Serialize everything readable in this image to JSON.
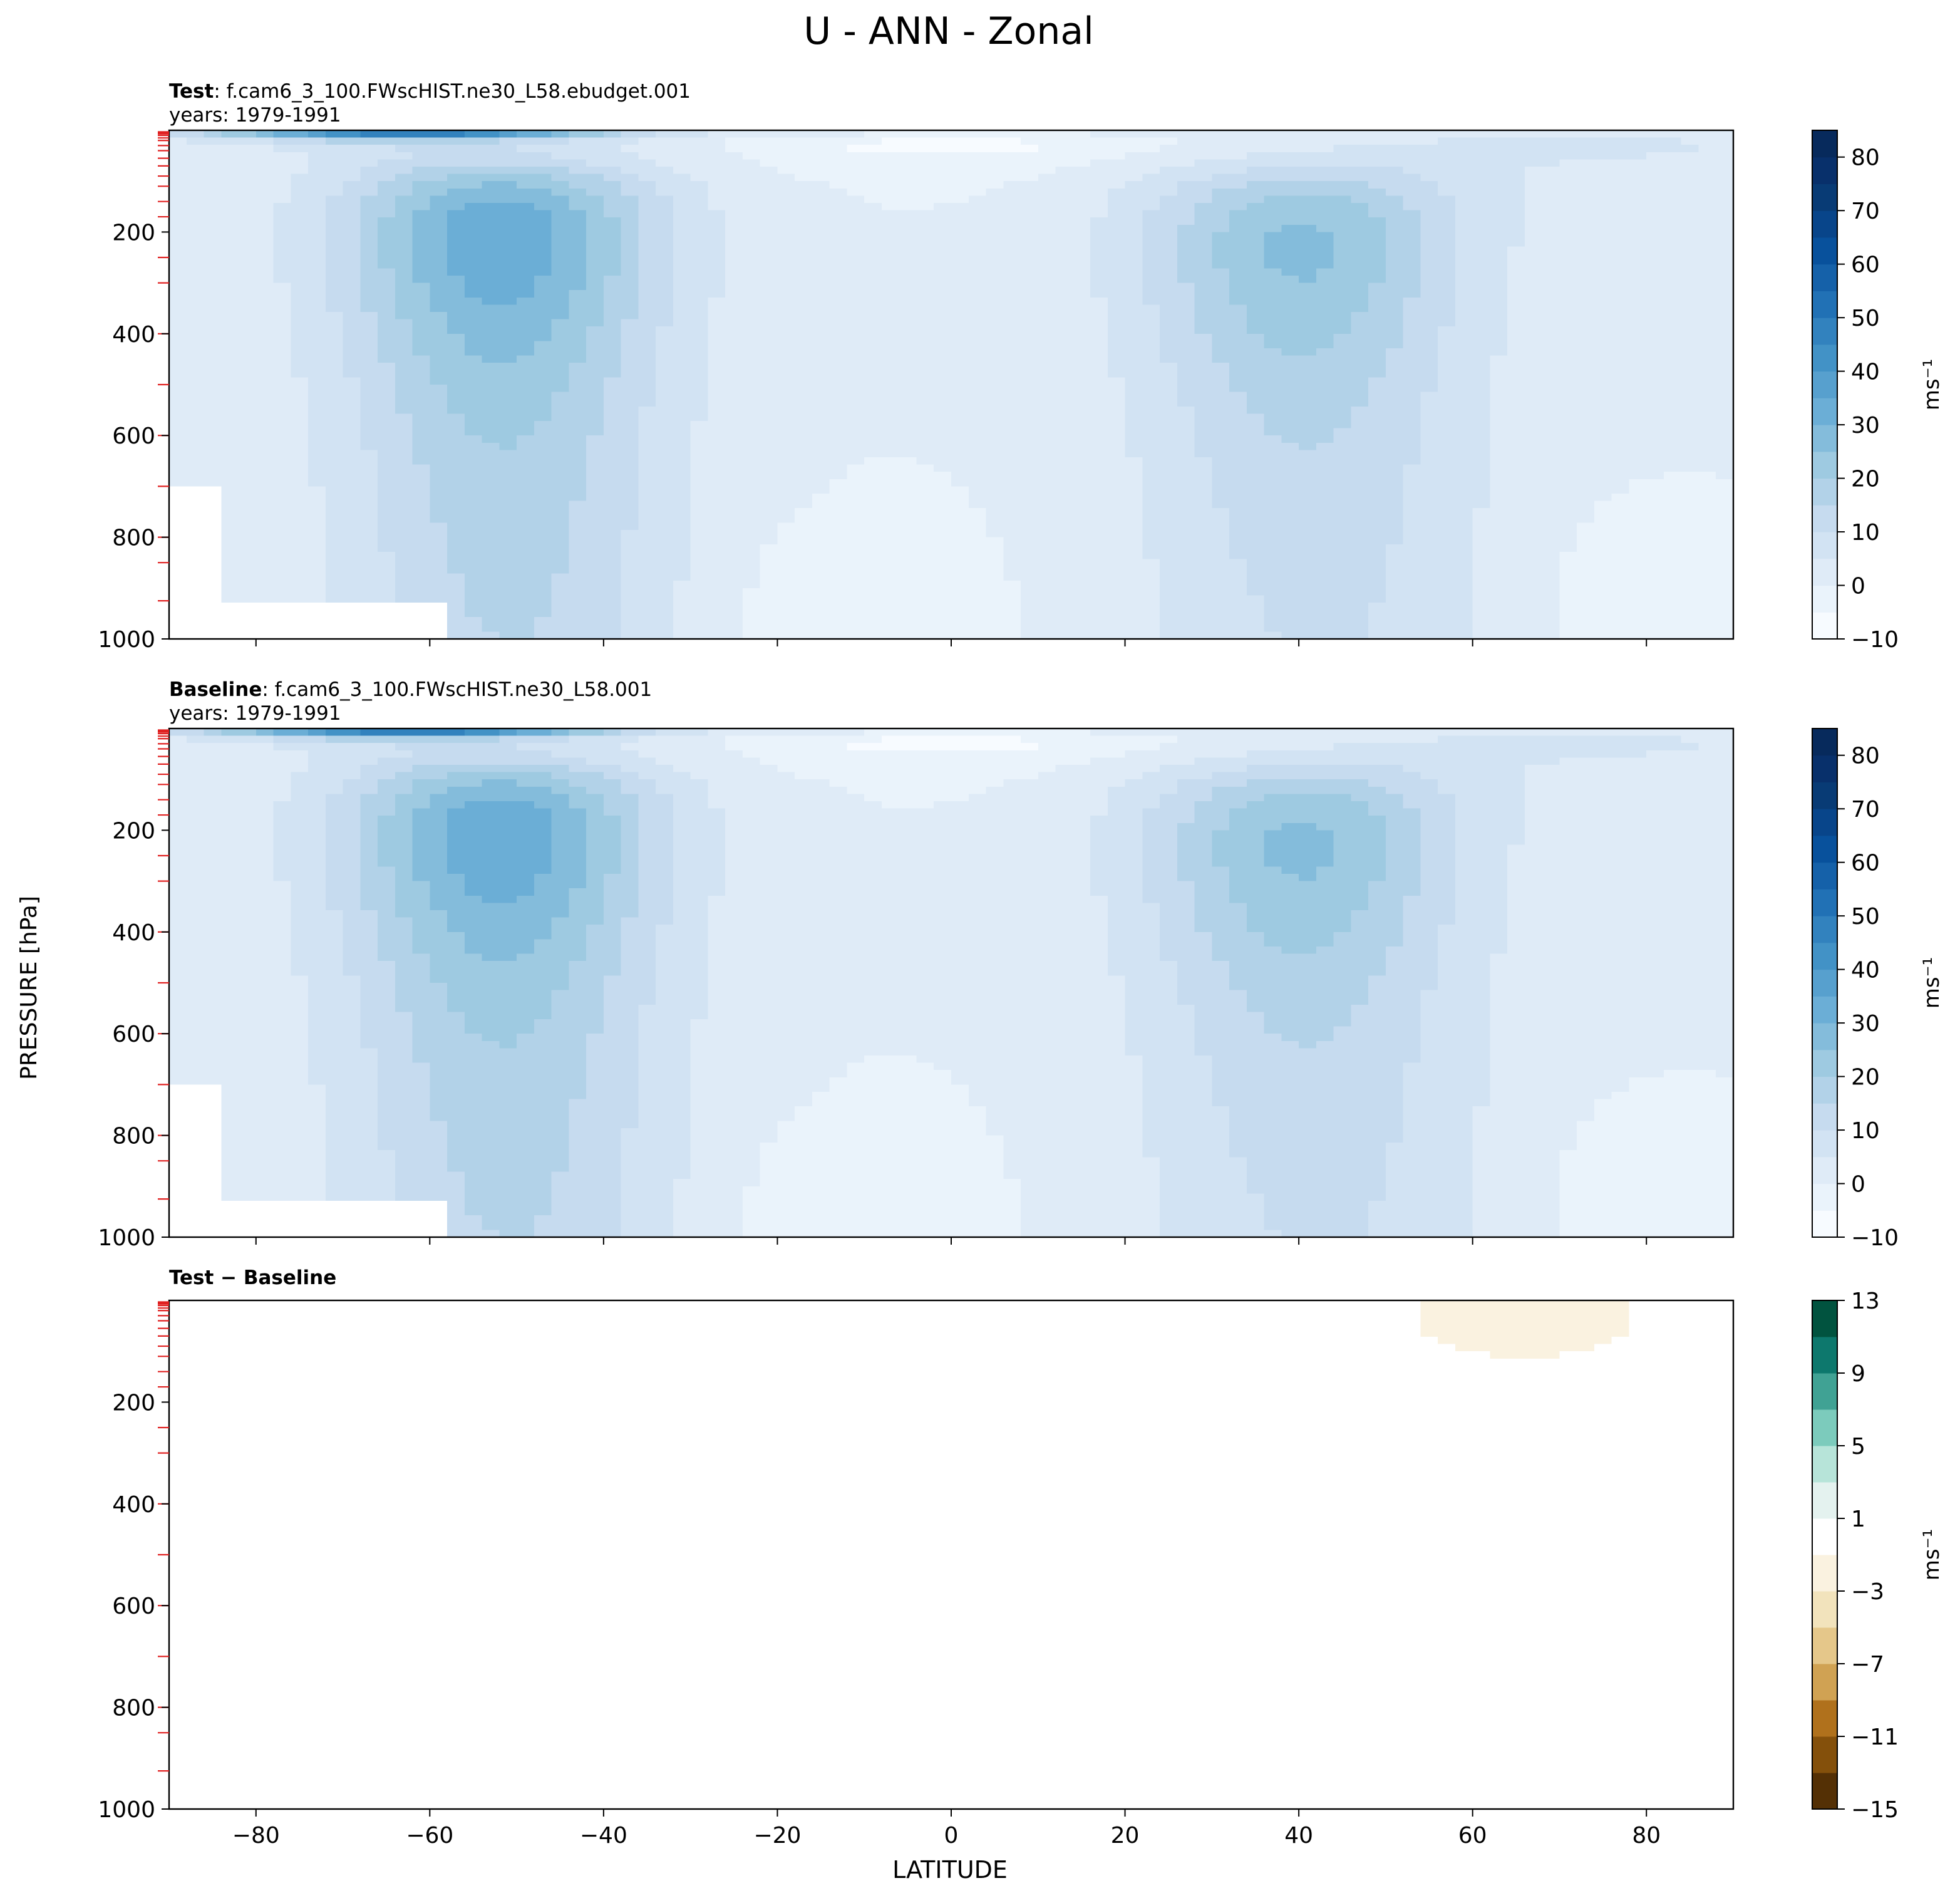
{
  "figure": {
    "title": "U - ANN - Zonal",
    "xlabel": "LATITUDE",
    "ylabel": "PRESSURE [hPa]"
  },
  "chart_data": [
    {
      "type": "heatmap",
      "panel": "test",
      "label_bold": "Test",
      "label_rest": ": f.cam6_3_100.FWscHIST.ne30_L58.ebudget.001",
      "years": "years: 1979-1991",
      "xlim": [
        -90,
        90
      ],
      "ylim": [
        1000,
        0
      ],
      "x_ticks": [
        -80,
        -60,
        -40,
        -20,
        0,
        20,
        40,
        60,
        80
      ],
      "x_tick_labels_shown": false,
      "y_ticks": [
        200,
        400,
        600,
        800,
        1000
      ],
      "colormap": "Blues",
      "colorbar": {
        "label": "ms⁻¹",
        "levels": [
          -10,
          -5,
          0,
          5,
          10,
          15,
          20,
          25,
          30,
          35,
          40,
          45,
          50,
          55,
          60,
          65,
          70,
          75,
          80,
          85
        ],
        "tick_values": [
          -10,
          0,
          10,
          20,
          30,
          40,
          50,
          60,
          70,
          80
        ],
        "tick_labels": [
          "−10",
          "0",
          "10",
          "20",
          "30",
          "40",
          "50",
          "60",
          "70",
          "80"
        ],
        "colors": [
          "#f7fbff",
          "#eaf3fb",
          "#dfebf7",
          "#d2e3f3",
          "#c6dbef",
          "#b2d2e8",
          "#9ecae1",
          "#84bcdb",
          "#6baed6",
          "#57a0ce",
          "#4292c6",
          "#3282be",
          "#2171b5",
          "#1561a9",
          "#08519c",
          "#08458a",
          "#083b75",
          "#08306b",
          "#072a5c"
        ]
      },
      "jets": [
        {
          "lat": -52,
          "p": 200,
          "max": 32
        },
        {
          "lat": 40,
          "p": 220,
          "max": 24
        }
      ],
      "upper_max": {
        "lat": -65,
        "p": 5,
        "value": 55
      },
      "model_levels_marked": "red ticks on left axis"
    },
    {
      "type": "heatmap",
      "panel": "baseline",
      "label_bold": "Baseline",
      "label_rest": ": f.cam6_3_100.FWscHIST.ne30_L58.001",
      "years": "years: 1979-1991",
      "xlim": [
        -90,
        90
      ],
      "ylim": [
        1000,
        0
      ],
      "x_ticks": [
        -80,
        -60,
        -40,
        -20,
        0,
        20,
        40,
        60,
        80
      ],
      "x_tick_labels_shown": false,
      "y_ticks": [
        200,
        400,
        600,
        800,
        1000
      ],
      "colormap": "Blues",
      "colorbar": {
        "label": "ms⁻¹",
        "levels": [
          -10,
          -5,
          0,
          5,
          10,
          15,
          20,
          25,
          30,
          35,
          40,
          45,
          50,
          55,
          60,
          65,
          70,
          75,
          80,
          85
        ],
        "tick_values": [
          -10,
          0,
          10,
          20,
          30,
          40,
          50,
          60,
          70,
          80
        ],
        "tick_labels": [
          "−10",
          "0",
          "10",
          "20",
          "30",
          "40",
          "50",
          "60",
          "70",
          "80"
        ],
        "colors": [
          "#f7fbff",
          "#eaf3fb",
          "#dfebf7",
          "#d2e3f3",
          "#c6dbef",
          "#b2d2e8",
          "#9ecae1",
          "#84bcdb",
          "#6baed6",
          "#57a0ce",
          "#4292c6",
          "#3282be",
          "#2171b5",
          "#1561a9",
          "#08519c",
          "#08458a",
          "#083b75",
          "#08306b",
          "#072a5c"
        ]
      },
      "jets": [
        {
          "lat": -52,
          "p": 200,
          "max": 32
        },
        {
          "lat": 40,
          "p": 220,
          "max": 24
        }
      ],
      "upper_max": {
        "lat": -65,
        "p": 5,
        "value": 55
      },
      "model_levels_marked": "red ticks on left axis"
    },
    {
      "type": "heatmap",
      "panel": "difference",
      "label_bold": "Test − Baseline",
      "label_rest": "",
      "years": "",
      "xlim": [
        -90,
        90
      ],
      "ylim": [
        1000,
        0
      ],
      "x_ticks": [
        -80,
        -60,
        -40,
        -20,
        0,
        20,
        40,
        60,
        80
      ],
      "x_tick_labels": [
        "−80",
        "−60",
        "−40",
        "−20",
        "0",
        "20",
        "40",
        "60",
        "80"
      ],
      "x_tick_labels_shown": true,
      "y_ticks": [
        200,
        400,
        600,
        800,
        1000
      ],
      "colormap": "BrBG",
      "background_value_range": [
        -1,
        1
      ],
      "colorbar": {
        "label": "ms⁻¹",
        "levels": [
          -15,
          -13,
          -11,
          -9,
          -7,
          -5,
          -3,
          -1,
          1,
          3,
          5,
          7,
          9,
          11,
          13
        ],
        "tick_values": [
          -15,
          -11,
          -7,
          -3,
          1,
          5,
          9,
          13
        ],
        "tick_labels": [
          "−15",
          "−11",
          "−7",
          "−3",
          "1",
          "5",
          "9",
          "13"
        ],
        "colors": [
          "#543005",
          "#84500b",
          "#b0711c",
          "#d0a253",
          "#e5c78a",
          "#f2e3bc",
          "#faf2e0",
          "#ffffff",
          "#e4f2ef",
          "#b7e4d9",
          "#7ccbbc",
          "#40a294",
          "#0d786d",
          "#01533f"
        ]
      },
      "anomalies": [
        {
          "lat": 65,
          "p": 50,
          "sign": "negative",
          "range": [
            -3,
            -1
          ]
        }
      ],
      "model_levels_marked": "red ticks on left axis"
    }
  ]
}
